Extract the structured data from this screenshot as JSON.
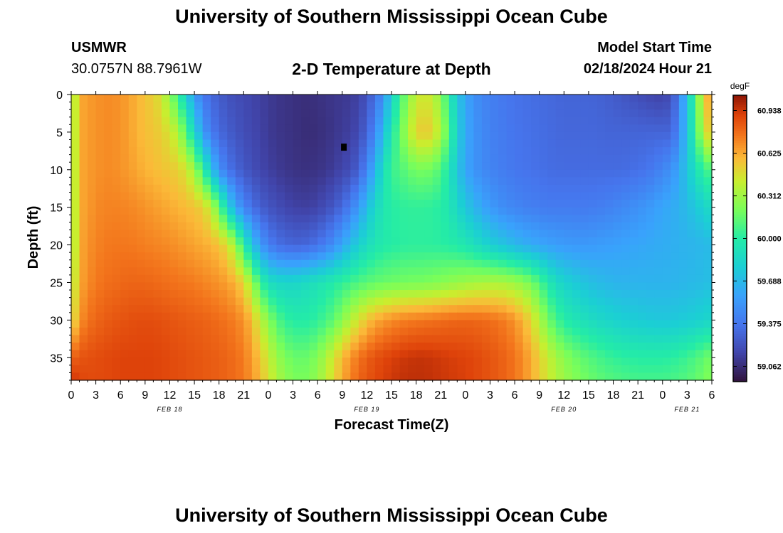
{
  "header": {
    "title": "University of Southern Mississippi Ocean Cube",
    "station": "USMWR",
    "coords": "30.0757N  88.7961W",
    "subtitle": "2-D Temperature at Depth",
    "model_label": "Model Start Time",
    "model_time": "02/18/2024 Hour 21"
  },
  "footer": {
    "title": "University of Southern Mississippi Ocean Cube"
  },
  "chart_data": {
    "type": "heatmap",
    "title": "2-D Temperature at Depth",
    "xlabel": "Forecast Time(Z)",
    "ylabel": "Depth (ft)",
    "x_hours_range": [
      0,
      78
    ],
    "x_tick_labels": [
      "0",
      "3",
      "6",
      "9",
      "12",
      "15",
      "18",
      "21",
      "0",
      "3",
      "6",
      "9",
      "12",
      "15",
      "18",
      "21",
      "0",
      "3",
      "6",
      "9",
      "12",
      "15",
      "18",
      "21",
      "0",
      "3",
      "6"
    ],
    "date_labels": [
      {
        "label": "FEB 18",
        "hour": 12
      },
      {
        "label": "FEB 19",
        "hour": 36
      },
      {
        "label": "FEB 20",
        "hour": 60
      },
      {
        "label": "FEB 21",
        "hour": 75
      }
    ],
    "ylim": [
      0,
      38
    ],
    "y_ticks": [
      0,
      5,
      10,
      15,
      20,
      25,
      30,
      35
    ],
    "colorbar": {
      "unit": "degF",
      "min": 58.95,
      "max": 61.05,
      "tick_labels": [
        "60.938",
        "60.625",
        "60.312",
        "60.000",
        "59.688",
        "59.375",
        "59.062"
      ]
    },
    "approx_values_degF": {
      "x_hours": [
        0,
        1,
        2,
        3,
        4,
        5,
        6,
        7,
        8,
        9,
        10,
        11,
        12,
        13,
        14,
        15,
        16,
        17,
        18,
        19,
        20,
        21,
        22,
        23,
        24,
        25,
        26,
        27,
        28,
        29,
        30,
        31,
        32,
        33,
        34,
        35,
        36,
        37,
        38,
        39,
        40,
        41,
        42,
        43,
        44,
        45,
        46,
        47,
        48,
        49,
        50,
        51,
        52,
        53,
        54,
        55,
        56,
        57,
        58,
        59,
        60,
        61,
        62,
        63,
        64,
        65,
        66,
        67,
        68,
        69,
        70,
        71,
        72,
        73,
        74,
        75,
        76,
        77,
        78
      ],
      "depth_ft": [
        0,
        5,
        10,
        15,
        20,
        25,
        30,
        35,
        38
      ],
      "rows": [
        [
          60.22,
          60.62,
          60.66,
          60.68,
          60.7,
          60.7,
          60.68,
          60.65,
          60.6,
          60.56,
          60.52,
          60.45,
          60.25,
          60.05,
          59.8,
          59.55,
          59.4,
          59.32,
          59.27,
          59.22,
          59.2,
          59.18,
          59.16,
          59.14,
          59.12,
          59.1,
          59.09,
          59.08,
          59.07,
          59.07,
          59.08,
          59.09,
          59.1,
          59.11,
          59.12,
          59.15,
          59.22,
          59.35,
          59.5,
          59.8,
          60.05,
          60.25,
          60.4,
          60.45,
          60.4,
          60.25,
          60.0,
          59.75,
          59.6,
          59.5,
          59.45,
          59.42,
          59.4,
          59.38,
          59.36,
          59.35,
          59.34,
          59.33,
          59.32,
          59.31,
          59.3,
          59.3,
          59.3,
          59.3,
          59.29,
          59.28,
          59.26,
          59.24,
          59.22,
          59.2,
          59.18,
          59.16,
          59.15,
          59.2,
          59.4,
          59.75,
          60.1,
          60.5,
          60.7
        ],
        [
          60.22,
          60.62,
          60.66,
          60.68,
          60.7,
          60.7,
          60.68,
          60.65,
          60.6,
          60.57,
          60.55,
          60.52,
          60.45,
          60.35,
          60.1,
          59.85,
          59.55,
          59.4,
          59.32,
          59.27,
          59.23,
          59.2,
          59.17,
          59.15,
          59.12,
          59.1,
          59.09,
          59.08,
          59.07,
          59.06,
          59.07,
          59.08,
          59.1,
          59.12,
          59.14,
          59.18,
          59.3,
          59.45,
          59.7,
          59.95,
          60.15,
          60.35,
          60.5,
          60.55,
          60.5,
          60.35,
          60.1,
          59.8,
          59.62,
          59.52,
          59.47,
          59.43,
          59.41,
          59.39,
          59.37,
          59.36,
          59.35,
          59.34,
          59.33,
          59.32,
          59.31,
          59.31,
          59.31,
          59.31,
          59.31,
          59.3,
          59.3,
          59.3,
          59.3,
          59.3,
          59.3,
          59.3,
          59.3,
          59.3,
          59.45,
          59.75,
          60.05,
          60.4,
          60.6
        ],
        [
          60.22,
          60.62,
          60.66,
          60.68,
          60.7,
          60.7,
          60.68,
          60.66,
          60.63,
          60.6,
          60.58,
          60.56,
          60.54,
          60.52,
          60.45,
          60.3,
          60.05,
          59.75,
          59.5,
          59.38,
          59.3,
          59.25,
          59.2,
          59.17,
          59.14,
          59.12,
          59.1,
          59.09,
          59.08,
          59.08,
          59.09,
          59.1,
          59.13,
          59.16,
          59.2,
          59.28,
          59.45,
          59.65,
          59.9,
          60.05,
          60.1,
          60.15,
          60.2,
          60.2,
          60.18,
          60.1,
          59.95,
          59.75,
          59.6,
          59.52,
          59.47,
          59.44,
          59.42,
          59.4,
          59.38,
          59.37,
          59.36,
          59.35,
          59.34,
          59.33,
          59.33,
          59.33,
          59.33,
          59.33,
          59.33,
          59.33,
          59.33,
          59.33,
          59.34,
          59.35,
          59.37,
          59.4,
          59.45,
          59.5,
          59.6,
          59.75,
          59.9,
          60.05,
          60.1
        ],
        [
          60.22,
          60.62,
          60.66,
          60.7,
          60.72,
          60.72,
          60.72,
          60.71,
          60.7,
          60.68,
          60.66,
          60.64,
          60.62,
          60.6,
          60.58,
          60.56,
          60.52,
          60.4,
          60.15,
          59.85,
          59.6,
          59.45,
          59.35,
          59.28,
          59.23,
          59.2,
          59.17,
          59.15,
          59.14,
          59.14,
          59.16,
          59.2,
          59.25,
          59.32,
          59.42,
          59.55,
          59.7,
          59.85,
          59.95,
          60.0,
          60.02,
          60.03,
          60.03,
          60.03,
          60.02,
          60.0,
          59.95,
          59.85,
          59.75,
          59.68,
          59.6,
          59.55,
          59.5,
          59.47,
          59.45,
          59.43,
          59.42,
          59.41,
          59.4,
          59.4,
          59.4,
          59.4,
          59.4,
          59.4,
          59.41,
          59.42,
          59.44,
          59.46,
          59.48,
          59.5,
          59.53,
          59.56,
          59.6,
          59.62,
          59.65,
          59.7,
          59.75,
          59.82,
          59.88
        ],
        [
          60.22,
          60.62,
          60.68,
          60.72,
          60.74,
          60.75,
          60.75,
          60.75,
          60.74,
          60.73,
          60.72,
          60.71,
          60.7,
          60.68,
          60.66,
          60.64,
          60.62,
          60.6,
          60.56,
          60.48,
          60.3,
          60.0,
          59.75,
          59.55,
          59.42,
          59.35,
          59.32,
          59.3,
          59.3,
          59.32,
          59.36,
          59.42,
          59.5,
          59.6,
          59.7,
          59.8,
          59.88,
          59.94,
          59.98,
          60.0,
          60.01,
          60.02,
          60.02,
          60.02,
          60.02,
          60.01,
          60.0,
          59.98,
          59.95,
          59.9,
          59.85,
          59.8,
          59.76,
          59.72,
          59.68,
          59.65,
          59.62,
          59.6,
          59.58,
          59.56,
          59.55,
          59.54,
          59.54,
          59.54,
          59.55,
          59.56,
          59.57,
          59.58,
          59.59,
          59.6,
          59.61,
          59.62,
          59.63,
          59.64,
          59.65,
          59.66,
          59.67,
          59.68,
          59.7
        ],
        [
          60.3,
          60.62,
          60.7,
          60.74,
          60.77,
          60.78,
          60.79,
          60.8,
          60.8,
          60.8,
          60.79,
          60.78,
          60.77,
          60.76,
          60.75,
          60.74,
          60.72,
          60.7,
          60.68,
          60.65,
          60.6,
          60.5,
          60.3,
          60.05,
          59.9,
          59.85,
          59.84,
          59.84,
          59.86,
          59.89,
          59.92,
          59.95,
          59.99,
          60.03,
          60.07,
          60.1,
          60.13,
          60.15,
          60.17,
          60.18,
          60.19,
          60.2,
          60.2,
          60.21,
          60.22,
          60.24,
          60.26,
          60.28,
          60.3,
          60.32,
          60.33,
          60.34,
          60.34,
          60.33,
          60.3,
          60.26,
          60.2,
          60.1,
          59.98,
          59.88,
          59.82,
          59.78,
          59.75,
          59.72,
          59.7,
          59.68,
          59.67,
          59.66,
          59.66,
          59.66,
          59.66,
          59.66,
          59.66,
          59.66,
          59.67,
          59.68,
          59.69,
          59.7,
          59.72
        ],
        [
          60.4,
          60.68,
          60.76,
          60.8,
          60.82,
          60.84,
          60.85,
          60.86,
          60.87,
          60.87,
          60.87,
          60.86,
          60.85,
          60.84,
          60.83,
          60.82,
          60.81,
          60.8,
          60.78,
          60.76,
          60.73,
          60.68,
          60.58,
          60.4,
          60.25,
          60.12,
          60.04,
          60.0,
          59.99,
          60.0,
          60.03,
          60.08,
          60.15,
          60.25,
          60.36,
          60.46,
          60.55,
          60.62,
          60.66,
          60.7,
          60.72,
          60.74,
          60.75,
          60.76,
          60.77,
          60.78,
          60.79,
          60.8,
          60.8,
          60.8,
          60.79,
          60.78,
          60.76,
          60.73,
          60.68,
          60.6,
          60.5,
          60.35,
          60.2,
          60.08,
          60.0,
          59.95,
          59.92,
          59.89,
          59.86,
          59.84,
          59.82,
          59.8,
          59.79,
          59.78,
          59.77,
          59.76,
          59.76,
          59.76,
          59.77,
          59.78,
          59.8,
          59.82,
          59.85
        ],
        [
          60.8,
          60.85,
          60.86,
          60.87,
          60.88,
          60.89,
          60.9,
          60.9,
          60.9,
          60.9,
          60.9,
          60.89,
          60.88,
          60.87,
          60.86,
          60.85,
          60.84,
          60.83,
          60.82,
          60.8,
          60.78,
          60.74,
          60.66,
          60.55,
          60.42,
          60.3,
          60.22,
          60.17,
          60.16,
          60.18,
          60.24,
          60.34,
          60.46,
          60.58,
          60.68,
          60.76,
          60.82,
          60.86,
          60.89,
          60.91,
          60.93,
          60.94,
          60.95,
          60.95,
          60.94,
          60.93,
          60.92,
          60.91,
          60.9,
          60.89,
          60.87,
          60.85,
          60.83,
          60.8,
          60.76,
          60.7,
          60.62,
          60.52,
          60.42,
          60.33,
          60.26,
          60.2,
          60.16,
          60.12,
          60.09,
          60.06,
          60.04,
          60.02,
          60.01,
          60.0,
          60.0,
          60.0,
          60.0,
          60.01,
          60.03,
          60.06,
          60.1,
          60.15,
          60.2
        ],
        [
          60.95,
          60.9,
          60.88,
          60.88,
          60.88,
          60.89,
          60.9,
          60.9,
          60.9,
          60.9,
          60.9,
          60.89,
          60.88,
          60.87,
          60.86,
          60.85,
          60.84,
          60.83,
          60.82,
          60.8,
          60.78,
          60.75,
          60.68,
          60.58,
          60.46,
          60.35,
          60.27,
          60.22,
          60.2,
          60.22,
          60.28,
          60.38,
          60.5,
          60.62,
          60.72,
          60.8,
          60.85,
          60.88,
          60.91,
          60.93,
          60.95,
          60.96,
          60.96,
          60.96,
          60.95,
          60.94,
          60.93,
          60.92,
          60.91,
          60.89,
          60.87,
          60.85,
          60.83,
          60.8,
          60.76,
          60.7,
          60.62,
          60.53,
          60.44,
          60.36,
          60.3,
          60.25,
          60.21,
          60.18,
          60.15,
          60.13,
          60.11,
          60.1,
          60.09,
          60.08,
          60.08,
          60.08,
          60.08,
          60.09,
          60.1,
          60.12,
          60.15,
          60.19,
          60.24
        ]
      ]
    },
    "markers": [
      {
        "x_hour": 33.2,
        "depth_ft": 7
      }
    ]
  }
}
